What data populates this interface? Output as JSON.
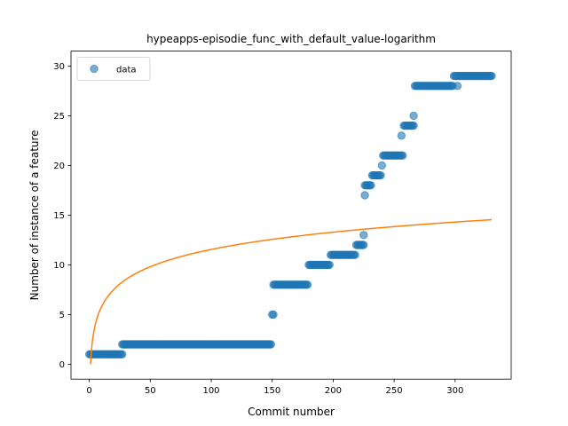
{
  "chart_data": {
    "type": "scatter",
    "title": "hypeapps-episodie_func_with_default_value-logarithm",
    "xlabel": "Commit number",
    "ylabel": "Number of instance of a feature",
    "xlim": [
      -15,
      346
    ],
    "ylim": [
      -1.5,
      31.5
    ],
    "xticks": [
      0,
      50,
      100,
      150,
      200,
      250,
      300
    ],
    "yticks": [
      0,
      5,
      10,
      15,
      20,
      25,
      30
    ],
    "grid": false,
    "legend_position": "top-left",
    "colors": {
      "data": "#1f77b4",
      "fit": "#ff7f0e"
    },
    "series": [
      {
        "name": "data",
        "kind": "scatter",
        "segments": [
          {
            "x_start": 0,
            "x_end": 27,
            "y": 1
          },
          {
            "x_start": 27,
            "x_end": 149,
            "y": 2
          },
          {
            "x_start": 150,
            "x_end": 151,
            "y": 5
          },
          {
            "x_start": 151,
            "x_end": 179,
            "y": 8
          },
          {
            "x_start": 180,
            "x_end": 197,
            "y": 10
          },
          {
            "x_start": 198,
            "x_end": 218,
            "y": 11
          },
          {
            "x_start": 219,
            "x_end": 225,
            "y": 12
          },
          {
            "x_start": 226,
            "x_end": 231,
            "y": 18
          },
          {
            "x_start": 232,
            "x_end": 239,
            "y": 19
          },
          {
            "x_start": 241,
            "x_end": 257,
            "y": 21
          },
          {
            "x_start": 258,
            "x_end": 266,
            "y": 24
          },
          {
            "x_start": 267,
            "x_end": 298,
            "y": 28
          },
          {
            "x_start": 299,
            "x_end": 330,
            "y": 29
          }
        ],
        "outliers": [
          {
            "x": 225,
            "y": 13
          },
          {
            "x": 226,
            "y": 17
          },
          {
            "x": 240,
            "y": 20
          },
          {
            "x": 256,
            "y": 23
          },
          {
            "x": 266,
            "y": 25
          },
          {
            "x": 302,
            "y": 28
          }
        ]
      },
      {
        "kind": "line",
        "function": "logarithm",
        "x_range": [
          1,
          330
        ],
        "samples": [
          {
            "x": 1,
            "y": 0
          },
          {
            "x": 2,
            "y": 1.74
          },
          {
            "x": 5,
            "y": 4.03
          },
          {
            "x": 10,
            "y": 5.77
          },
          {
            "x": 25,
            "y": 8.06
          },
          {
            "x": 50,
            "y": 9.8
          },
          {
            "x": 100,
            "y": 11.54
          },
          {
            "x": 150,
            "y": 12.56
          },
          {
            "x": 200,
            "y": 13.28
          },
          {
            "x": 250,
            "y": 13.84
          },
          {
            "x": 300,
            "y": 14.3
          },
          {
            "x": 330,
            "y": 14.54
          }
        ]
      }
    ]
  }
}
